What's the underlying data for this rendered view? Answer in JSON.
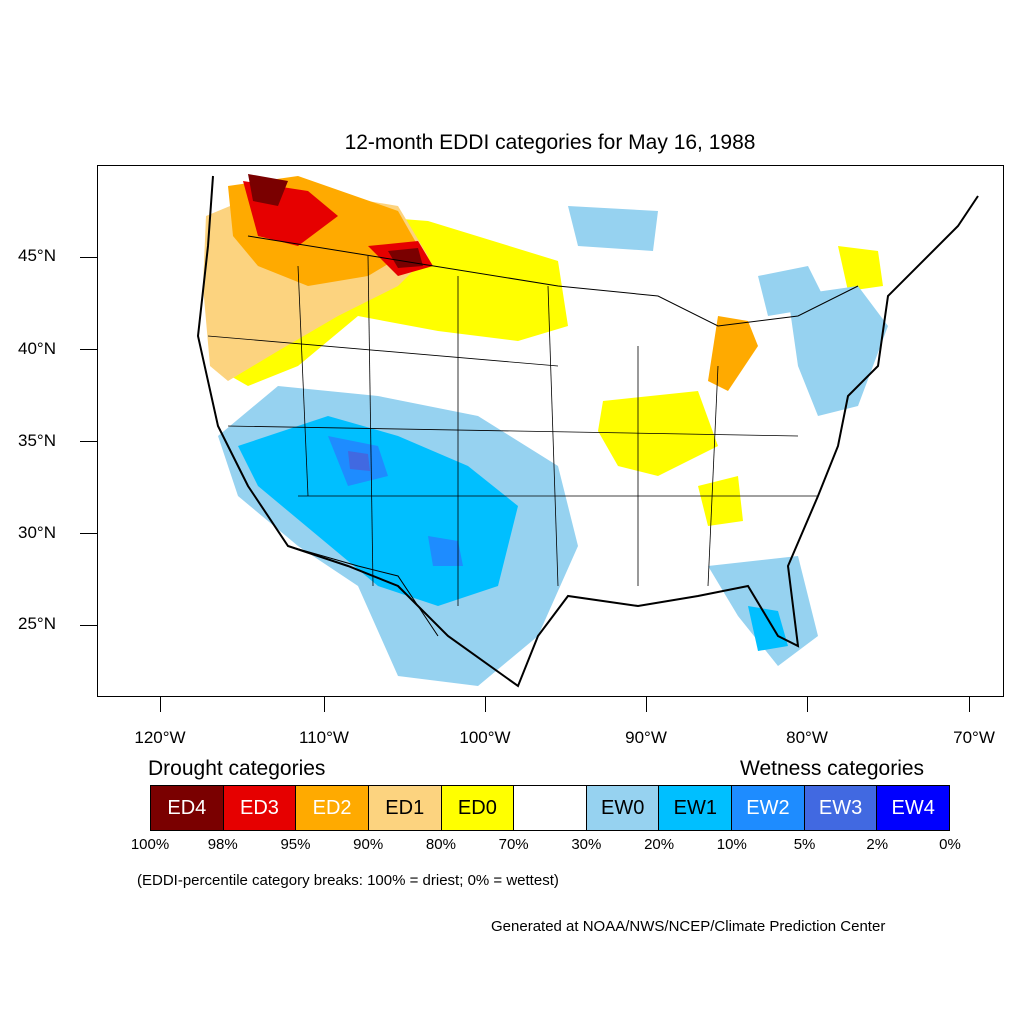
{
  "title": "12-month EDDI categories for May 16, 1988",
  "lat_labels": [
    "45°N",
    "40°N",
    "35°N",
    "30°N",
    "25°N"
  ],
  "lon_labels": [
    "120°W",
    "110°W",
    "100°W",
    "90°W",
    "80°W",
    "70°W"
  ],
  "legend": {
    "drought_heading": "Drought categories",
    "wetness_heading": "Wetness categories",
    "categories": [
      {
        "label": "ED4",
        "color": "#7a0000",
        "text_color": "#ffffff"
      },
      {
        "label": "ED3",
        "color": "#e60000",
        "text_color": "#ffffff"
      },
      {
        "label": "ED2",
        "color": "#ffaa00",
        "text_color": "#ffffff"
      },
      {
        "label": "ED1",
        "color": "#fcd37f",
        "text_color": "#000000"
      },
      {
        "label": "ED0",
        "color": "#ffff00",
        "text_color": "#000000"
      },
      {
        "label": "",
        "color": "#ffffff",
        "text_color": "#000000"
      },
      {
        "label": "EW0",
        "color": "#96d2f0",
        "text_color": "#000000"
      },
      {
        "label": "EW1",
        "color": "#00bfff",
        "text_color": "#000000"
      },
      {
        "label": "EW2",
        "color": "#1e8cff",
        "text_color": "#ffffff"
      },
      {
        "label": "EW3",
        "color": "#4169e1",
        "text_color": "#ffffff"
      },
      {
        "label": "EW4",
        "color": "#0000ff",
        "text_color": "#ffffff"
      }
    ],
    "breaks": [
      "100%",
      "98%",
      "95%",
      "90%",
      "80%",
      "70%",
      "30%",
      "20%",
      "10%",
      "5%",
      "2%",
      "0%"
    ]
  },
  "note": "(EDDI-percentile category breaks: 100% = driest; 0% = wettest)",
  "credit": "Generated at NOAA/NWS/NCEP/Climate Prediction Center"
}
